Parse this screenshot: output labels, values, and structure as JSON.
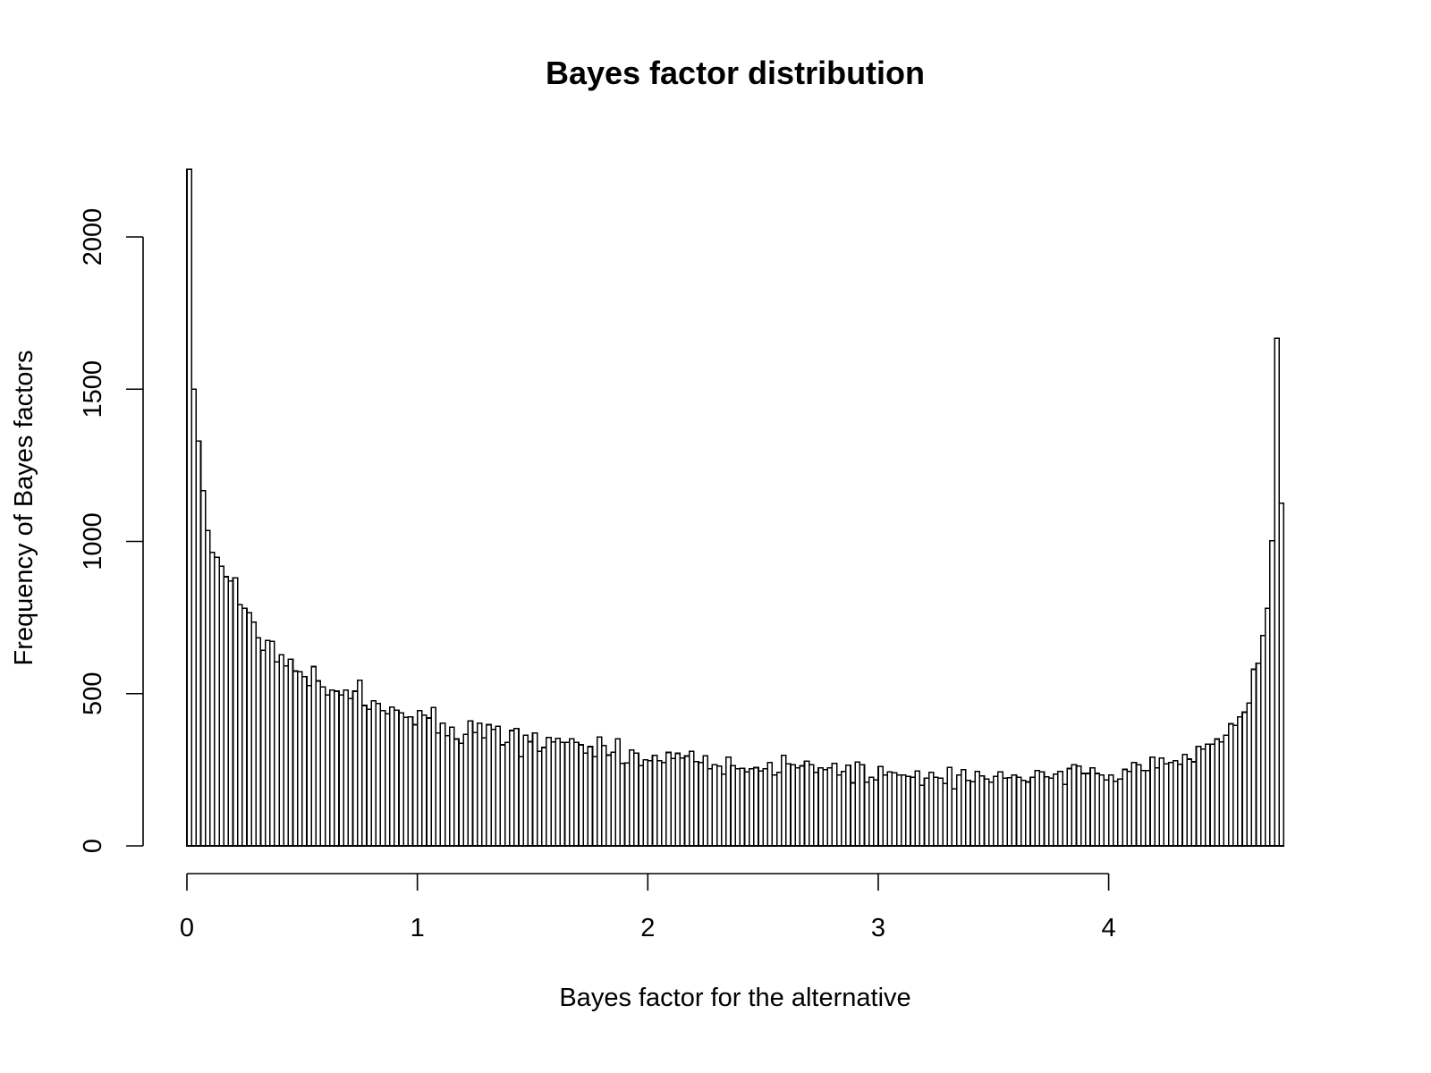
{
  "chart_data": {
    "type": "bar",
    "subtype": "histogram",
    "title": "Bayes factor distribution",
    "xlabel": "Bayes factor for the alternative",
    "ylabel": "Frequency of Bayes factors",
    "x_ticks": [
      0,
      1,
      2,
      3,
      4
    ],
    "y_ticks": [
      0,
      500,
      1000,
      1500,
      2000
    ],
    "xlim": [
      0,
      4.76
    ],
    "ylim": [
      0,
      2222
    ],
    "bin_width": 0.02,
    "bin_start": 0,
    "grid": false,
    "legend": null,
    "bar_fill": "#ffffff",
    "bar_stroke": "#000000",
    "values": [
      2222,
      1500,
      1330,
      1167,
      1036,
      964,
      948,
      918,
      884,
      870,
      880,
      792,
      781,
      766,
      735,
      683,
      642,
      675,
      672,
      604,
      628,
      591,
      613,
      574,
      572,
      556,
      526,
      589,
      542,
      522,
      496,
      512,
      508,
      496,
      512,
      484,
      508,
      544,
      461,
      449,
      477,
      468,
      444,
      434,
      456,
      446,
      437,
      422,
      424,
      398,
      444,
      430,
      420,
      454,
      371,
      403,
      362,
      390,
      351,
      337,
      366,
      410,
      372,
      403,
      355,
      398,
      382,
      393,
      332,
      340,
      379,
      385,
      293,
      364,
      342,
      371,
      310,
      323,
      356,
      341,
      353,
      340,
      340,
      352,
      340,
      332,
      305,
      326,
      293,
      357,
      330,
      298,
      308,
      352,
      271,
      272,
      315,
      305,
      264,
      283,
      280,
      297,
      280,
      274,
      307,
      287,
      304,
      289,
      295,
      311,
      277,
      274,
      296,
      253,
      266,
      262,
      236,
      292,
      264,
      253,
      255,
      243,
      253,
      257,
      246,
      253,
      274,
      233,
      241,
      297,
      269,
      266,
      256,
      263,
      278,
      266,
      241,
      256,
      250,
      256,
      271,
      233,
      244,
      265,
      207,
      275,
      266,
      209,
      225,
      217,
      261,
      233,
      243,
      240,
      233,
      233,
      228,
      225,
      246,
      199,
      222,
      241,
      225,
      222,
      205,
      258,
      187,
      233,
      250,
      215,
      211,
      244,
      230,
      219,
      209,
      228,
      243,
      222,
      224,
      233,
      225,
      215,
      210,
      225,
      248,
      243,
      227,
      222,
      236,
      244,
      202,
      254,
      267,
      262,
      238,
      238,
      256,
      238,
      233,
      217,
      233,
      212,
      219,
      251,
      244,
      274,
      266,
      248,
      248,
      292,
      256,
      288,
      270,
      274,
      280,
      268,
      300,
      285,
      276,
      327,
      318,
      334,
      334,
      351,
      341,
      364,
      401,
      396,
      424,
      439,
      469,
      580,
      600,
      691,
      780,
      1002,
      1667,
      1125
    ]
  }
}
